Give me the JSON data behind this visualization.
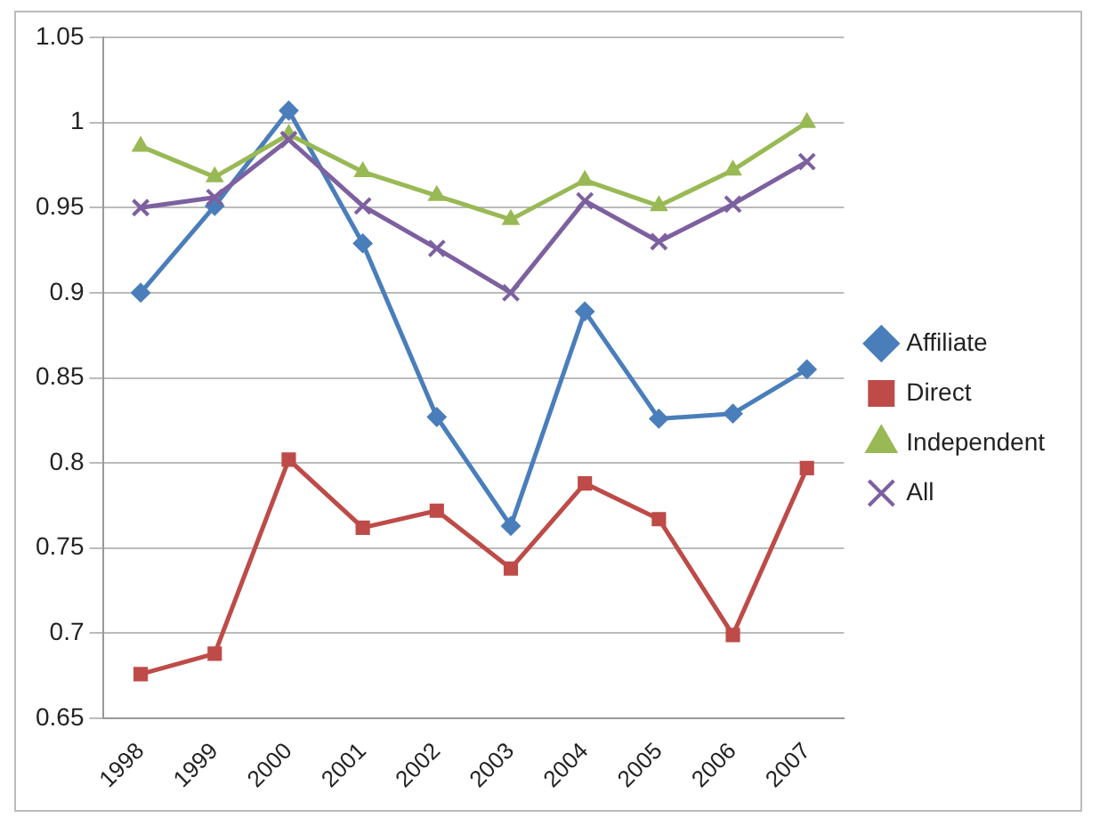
{
  "chart_data": {
    "type": "line",
    "categories": [
      "1998",
      "1999",
      "2000",
      "2001",
      "2002",
      "2003",
      "2004",
      "2005",
      "2006",
      "2007"
    ],
    "series": [
      {
        "name": "Affiliate",
        "color": "#4a7ebb",
        "marker": "diamond",
        "values": [
          0.9,
          0.951,
          1.007,
          0.929,
          0.827,
          0.763,
          0.889,
          0.826,
          0.829,
          0.855
        ]
      },
      {
        "name": "Direct",
        "color": "#be4b48",
        "marker": "square",
        "values": [
          0.676,
          0.688,
          0.802,
          0.762,
          0.772,
          0.738,
          0.788,
          0.767,
          0.699,
          0.797
        ]
      },
      {
        "name": "Independent",
        "color": "#98b954",
        "marker": "triangle",
        "values": [
          0.986,
          0.968,
          0.993,
          0.971,
          0.957,
          0.943,
          0.966,
          0.951,
          0.972,
          1.0
        ]
      },
      {
        "name": "All",
        "color": "#7d60a0",
        "marker": "cross",
        "values": [
          0.95,
          0.956,
          0.99,
          0.951,
          0.926,
          0.9,
          0.954,
          0.93,
          0.952,
          0.977
        ]
      }
    ],
    "ylim": [
      0.65,
      1.05
    ],
    "yticks": [
      0.65,
      0.7,
      0.75,
      0.8,
      0.85,
      0.9,
      0.95,
      1,
      1.05
    ],
    "grid": "y",
    "legend": "right",
    "line_style": "solid"
  }
}
